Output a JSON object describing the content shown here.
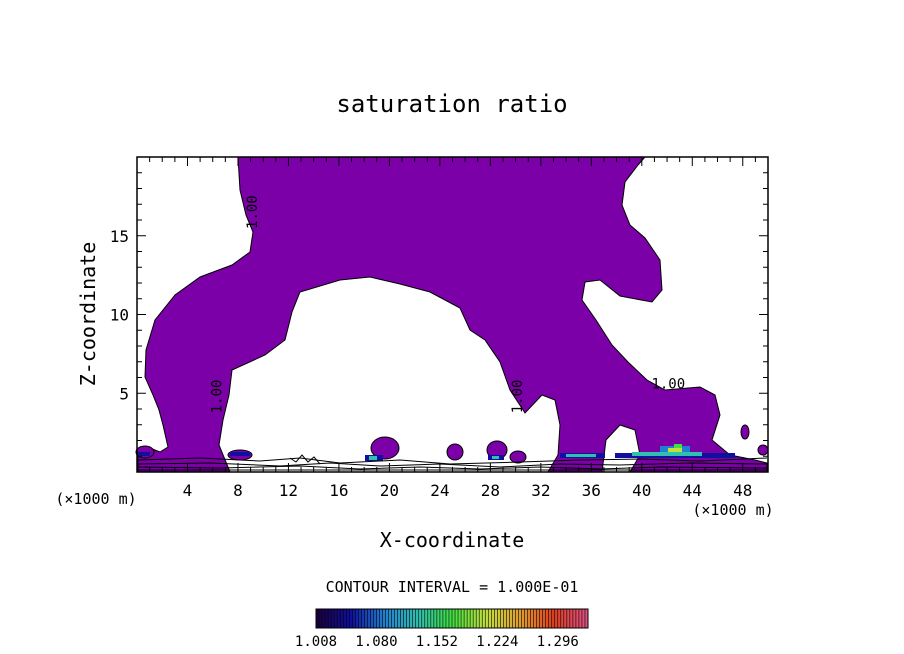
{
  "chart_data": {
    "type": "contour",
    "title": "saturation ratio",
    "xlabel": "X-coordinate",
    "ylabel": "Z-coordinate",
    "x_unit": "(×1000 m)",
    "xlim": [
      0,
      50
    ],
    "ylim": [
      0,
      20
    ],
    "x_ticks": [
      4,
      8,
      12,
      16,
      20,
      24,
      28,
      32,
      36,
      40,
      44,
      48
    ],
    "y_ticks": [
      5,
      10,
      15
    ],
    "contour_labels": [
      {
        "text": "1.00",
        "x": 9.5,
        "z": 16.5
      },
      {
        "text": "1.00",
        "x": 6.7,
        "z": 4.8
      },
      {
        "text": "1.00",
        "x": 30.5,
        "z": 4.8
      },
      {
        "text": "1.00",
        "x": 42.1,
        "z": 5.3
      }
    ],
    "contour_interval_text": "CONTOUR INTERVAL = 1.000E-01",
    "colorbar": {
      "labels": [
        "1.008",
        "1.080",
        "1.152",
        "1.224",
        "1.296"
      ],
      "min": 1.008,
      "max": 1.332
    },
    "fill_color": "#7c00a8",
    "colors": [
      "#1a0040",
      "#1010a0",
      "#2080d0",
      "#30c0b0",
      "#40e040",
      "#c0e040",
      "#e0a030",
      "#e04020",
      "#e05080"
    ],
    "grid": false,
    "legend": "colorbar-bottom"
  }
}
